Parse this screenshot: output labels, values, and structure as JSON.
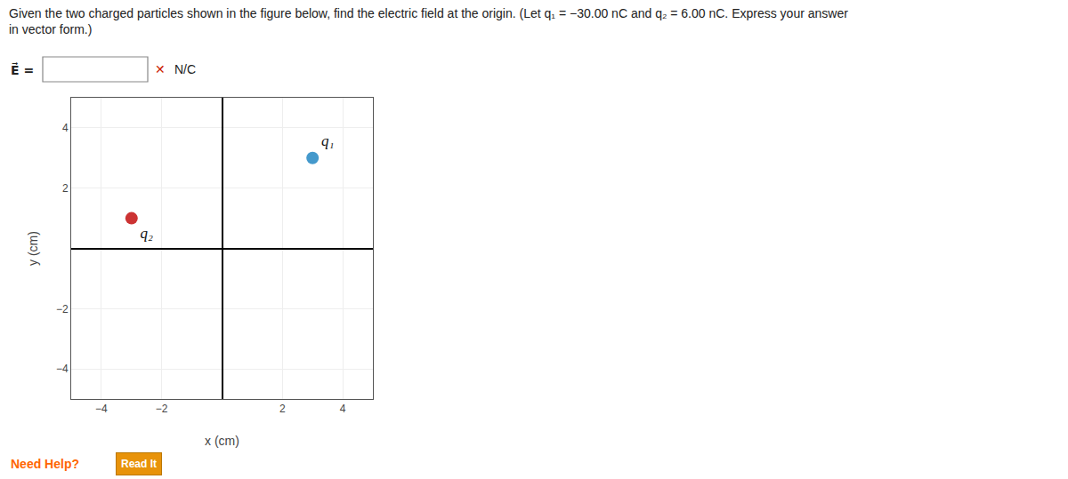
{
  "chart_data": {
    "type": "scatter",
    "title": "Given the two charged particles shown in the figure below, find the electric field at the origin. (Let q₁ = −30.00 nC and q₂ = 6.00 nC. Express your answer\nin vector form.)",
    "xlabel": "x (cm)",
    "ylabel": "y (cm)",
    "xlim": [
      -5,
      5
    ],
    "ylim": [
      -5,
      5
    ],
    "xticks": [
      {
        "value": -4,
        "label": "−4"
      },
      {
        "value": -2,
        "label": "−2"
      },
      {
        "value": 0,
        "label": null
      },
      {
        "value": 2,
        "label": "2"
      },
      {
        "value": 4,
        "label": "4"
      }
    ],
    "yticks": [
      {
        "value": -4,
        "label": "−4"
      },
      {
        "value": -2,
        "label": "−2"
      },
      {
        "value": 0,
        "label": null
      },
      {
        "value": 2,
        "label": "2"
      },
      {
        "value": 4,
        "label": "4"
      }
    ],
    "grid": true,
    "series": [
      {
        "name": "q₁",
        "color": "#4499cc",
        "x": [
          3
        ],
        "values": [
          3
        ]
      },
      {
        "name": "q₂",
        "color": "#cc3333",
        "x": [
          -3
        ],
        "values": [
          1
        ]
      }
    ],
    "annotations": [
      {
        "text": "E⃗ ="
      },
      {
        "text": "✕",
        "color": "#cc2200"
      },
      {
        "text": "N/C"
      },
      {
        "text": "Need Help?",
        "color": "#ff6600"
      },
      {
        "text": "Read It",
        "color": "#e8930a"
      }
    ]
  }
}
